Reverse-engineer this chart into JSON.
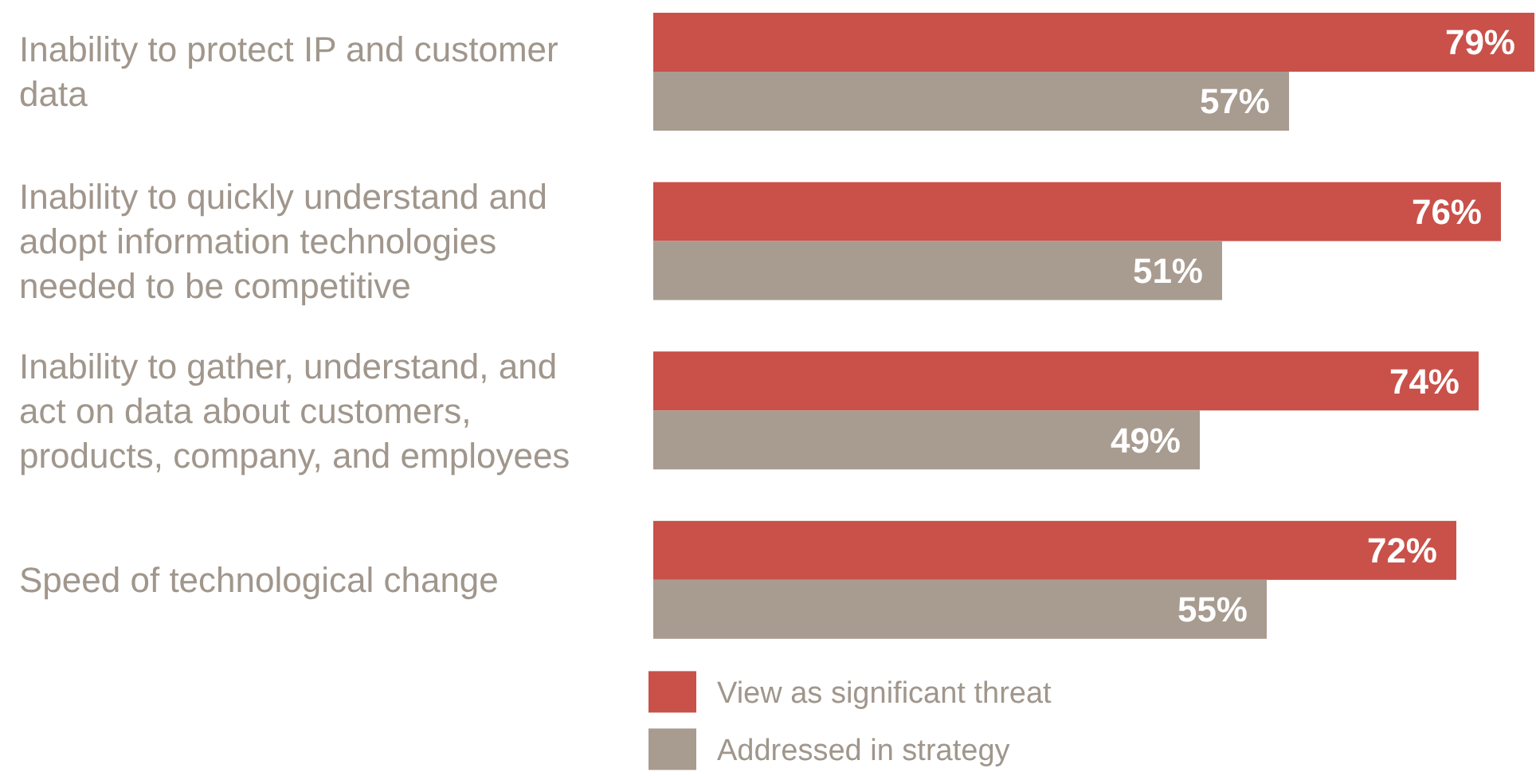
{
  "chart_data": {
    "type": "bar",
    "orientation": "horizontal",
    "categories": [
      "Inability to protect IP and customer data",
      "Inability to quickly understand and adopt information technologies needed to be competitive",
      "Inability to gather, understand, and act on data about customers, products, company, and employees",
      "Speed of technological change"
    ],
    "series": [
      {
        "name": "View as significant threat",
        "color": "#c9514a",
        "values": [
          79,
          76,
          74,
          72
        ],
        "value_labels": [
          "79%",
          "76%",
          "74%",
          "72%"
        ]
      },
      {
        "name": "Addressed in strategy",
        "color": "#a89b90",
        "values": [
          57,
          51,
          49,
          55
        ],
        "value_labels": [
          "57%",
          "51%",
          "49%",
          "55%"
        ]
      }
    ],
    "legend": "bottom"
  }
}
